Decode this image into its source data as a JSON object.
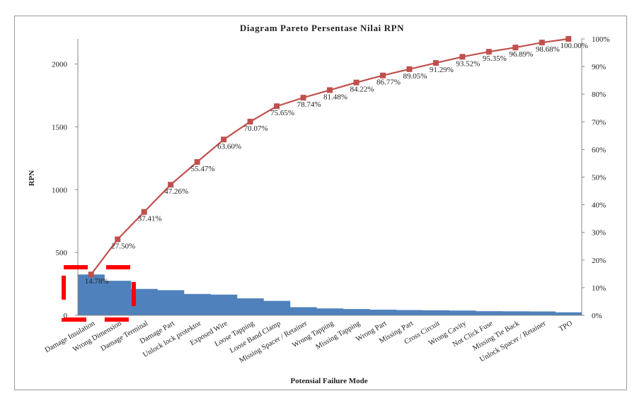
{
  "chart_data": {
    "type": "bar",
    "title": "Diagram Pareto Persentase Nilai RPN",
    "xlabel": "Potensial Failure Mode",
    "ylabel": "RPN",
    "ylim": [
      0,
      2200
    ],
    "yticks": [
      0,
      500,
      1000,
      1500,
      2000
    ],
    "y2lim": [
      0,
      100
    ],
    "y2ticks": [
      "0%",
      "10%",
      "20%",
      "30%",
      "40%",
      "50%",
      "60%",
      "70%",
      "80%",
      "90%",
      "100%"
    ],
    "categories": [
      "Damage Insulation",
      "Wrong Dimension",
      "Damage Terminal",
      "Damage Part",
      "Unlock lock protektor",
      "Exposed Wire",
      "Loose Tapping",
      "Loose Band Clamp",
      "Missing Spacer / Retainer",
      "Wrong Tapping",
      "Missing Tapping",
      "Wrong Part",
      "Missing Part",
      "Cross Circuit",
      "Wrong Cavity",
      "Not Click Fuse",
      "Missing Tie Back",
      "Unlock Spacer / Retainer",
      "TPO"
    ],
    "series": [
      {
        "kind": "bar",
        "values": [
          325,
          275,
          210,
          200,
          170,
          165,
          135,
          115,
          65,
          55,
          50,
          45,
          42,
          40,
          38,
          33,
          32,
          31,
          24
        ]
      },
      {
        "kind": "line",
        "values": [
          14.78,
          27.5,
          37.41,
          47.26,
          55.47,
          63.6,
          70.07,
          75.65,
          78.74,
          81.48,
          84.22,
          86.77,
          89.05,
          91.29,
          93.52,
          95.35,
          96.89,
          98.68,
          100.0
        ],
        "labels": [
          "14.78%",
          "27.50%",
          "37.41%",
          "47.26%",
          "55.47%",
          "63.60%",
          "70.07%",
          "75.65%",
          "78.74%",
          "81.48%",
          "84.22%",
          "86.77%",
          "89.05%",
          "91.29%",
          "93.52%",
          "95.35%",
          "96.89%",
          "98.68%",
          "100.00%"
        ]
      }
    ],
    "grid": false,
    "legend": "none",
    "colors": {
      "bar": "#4f81bd",
      "line": "#c0504d",
      "highlight": "#ff0000"
    },
    "annotation": {
      "type": "dashed-box",
      "around_categories": [
        "Damage Insulation",
        "Wrong Dimension"
      ]
    }
  }
}
